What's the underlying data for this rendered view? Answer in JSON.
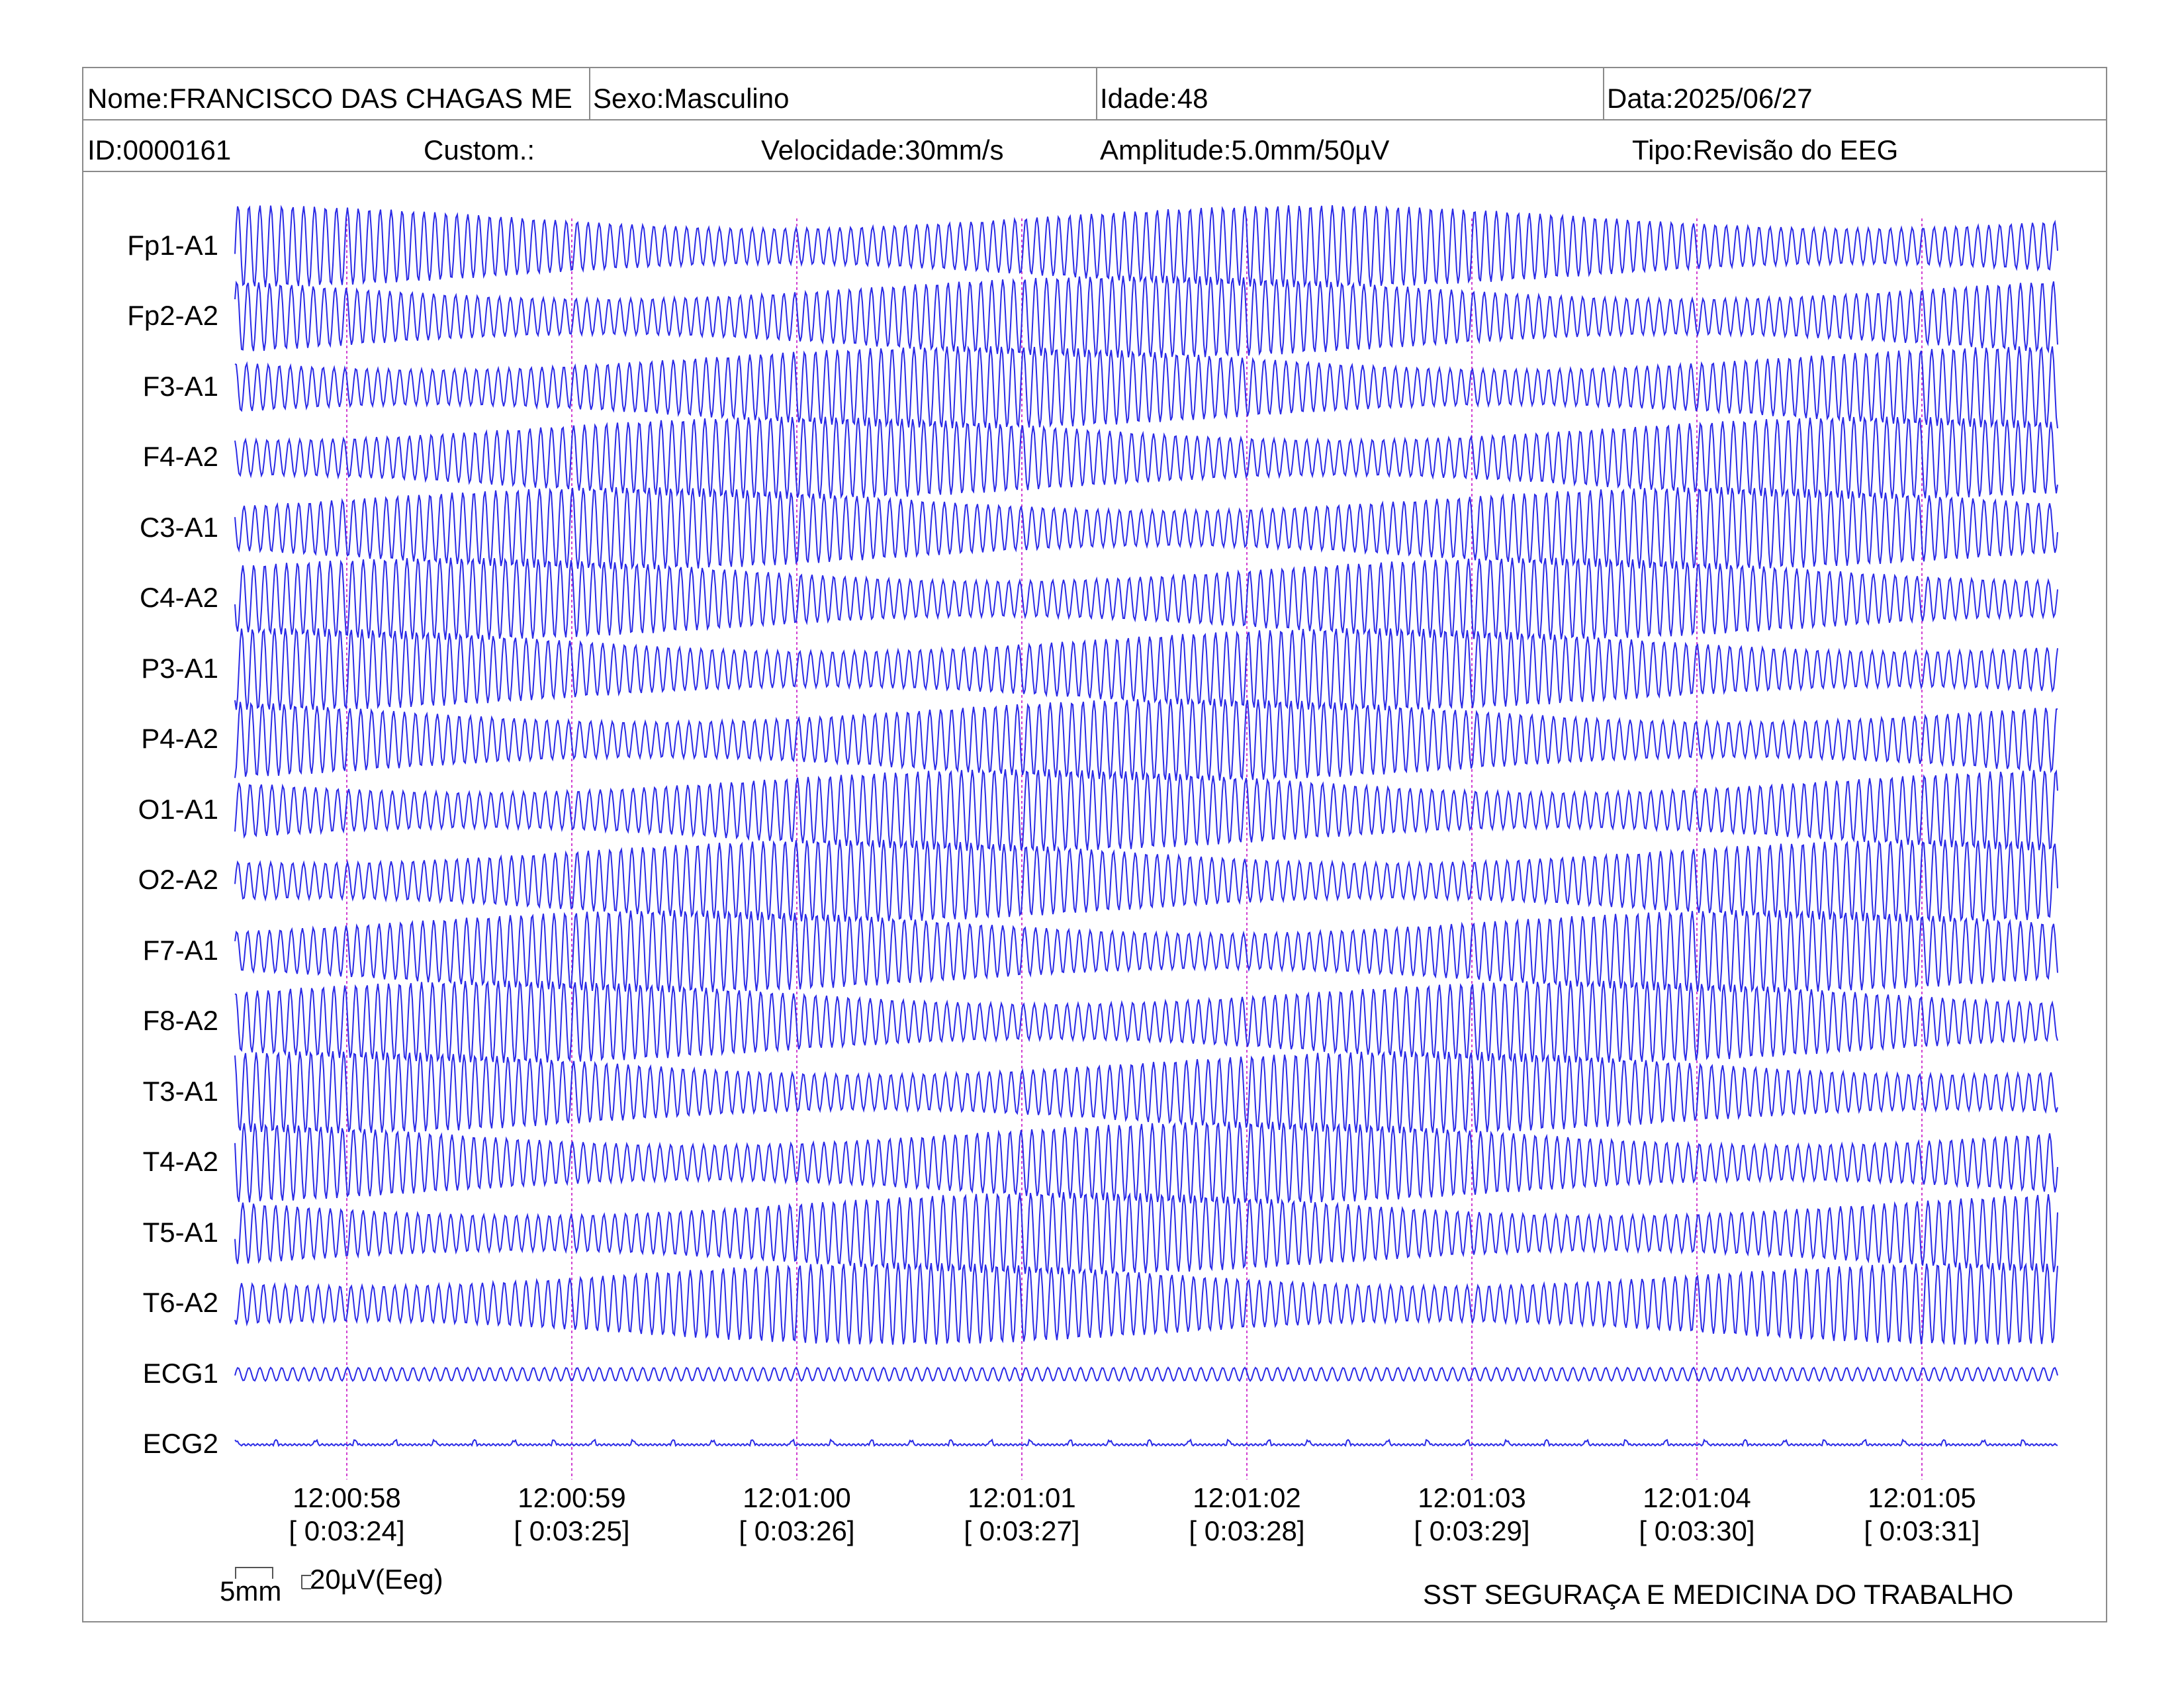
{
  "header": {
    "nome": "Nome:FRANCISCO DAS CHAGAS ME",
    "sexo": "Sexo:Masculino",
    "idade": "Idade:48",
    "data": "Data:2025/06/27",
    "id": "ID:0000161",
    "custom": "Custom.:",
    "velocidade": "Velocidade:30mm/s",
    "amplitude": "Amplitude:5.0mm/50µV",
    "tipo": "Tipo:Revisão do EEG"
  },
  "channels": [
    "Fp1-A1",
    "Fp2-A2",
    "F3-A1",
    "F4-A2",
    "C3-A1",
    "C4-A2",
    "P3-A1",
    "P4-A2",
    "O1-A1",
    "O2-A2",
    "F7-A1",
    "F8-A2",
    "T3-A1",
    "T4-A2",
    "T5-A1",
    "T6-A2",
    "ECG1",
    "ECG2"
  ],
  "time_markers": [
    {
      "clock": "12:00:58",
      "elapsed": "[ 0:03:24]"
    },
    {
      "clock": "12:00:59",
      "elapsed": "[ 0:03:25]"
    },
    {
      "clock": "12:01:00",
      "elapsed": "[ 0:03:26]"
    },
    {
      "clock": "12:01:01",
      "elapsed": "[ 0:03:27]"
    },
    {
      "clock": "12:01:02",
      "elapsed": "[ 0:03:28]"
    },
    {
      "clock": "12:01:03",
      "elapsed": "[ 0:03:29]"
    },
    {
      "clock": "12:01:04",
      "elapsed": "[ 0:03:30]"
    },
    {
      "clock": "12:01:05",
      "elapsed": "[ 0:03:31]"
    }
  ],
  "scale": {
    "time_label": "5mm",
    "amp_label": "20µV(Eeg)"
  },
  "footer": "SST SEGURAÇA E MEDICINA DO TRABALHO",
  "colors": {
    "trace": "#2a2ae6",
    "marker": "#d040d0",
    "border": "#8a8a8a"
  }
}
